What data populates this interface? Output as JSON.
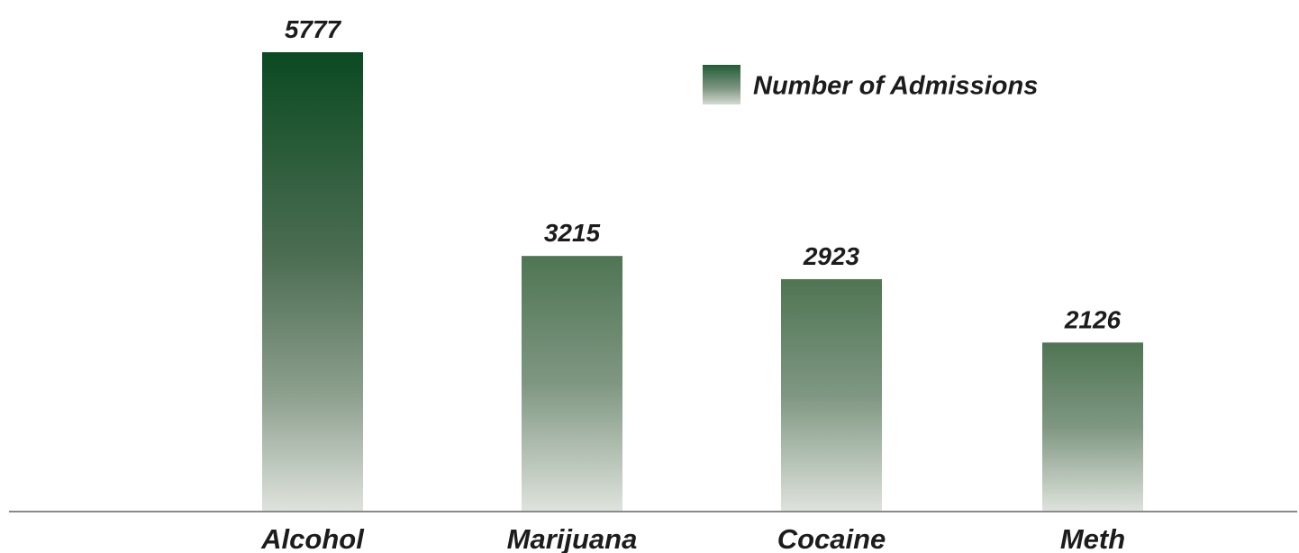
{
  "colors": {
    "bar_top": "#0a4a22",
    "bar_bottom": "#dfe3dd",
    "axis": "#8a8a8a",
    "text": "#1c1c1c",
    "background": "#ffffff"
  },
  "chart_data": {
    "type": "bar",
    "title": "",
    "xlabel": "",
    "ylabel": "",
    "categories": [
      "Alcohol",
      "Marijuana",
      "Cocaine",
      "Meth"
    ],
    "series": [
      {
        "name": "Number of Admissions",
        "values": [
          5777,
          3215,
          2923,
          2126
        ]
      }
    ],
    "data_labels": [
      "5777",
      "3215",
      "2923",
      "2126"
    ],
    "ylim": [
      0,
      5777
    ],
    "grid": false,
    "legend": {
      "position": "top-right",
      "entries": [
        "Number of Admissions"
      ]
    }
  }
}
